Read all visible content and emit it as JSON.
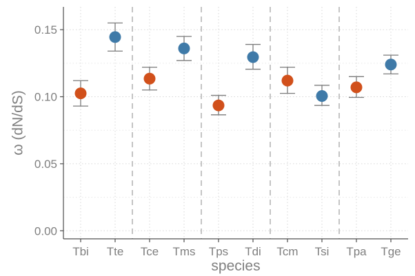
{
  "chart_data": {
    "type": "scatter",
    "categories": [
      "Tbi",
      "Tte",
      "Tce",
      "Tms",
      "Tps",
      "Tdi",
      "Tcm",
      "Tsi",
      "Tpa",
      "Tge"
    ],
    "values": [
      0.1025,
      0.1445,
      0.1135,
      0.136,
      0.0935,
      0.1295,
      0.112,
      0.1005,
      0.107,
      0.124
    ],
    "error_low": [
      0.093,
      0.134,
      0.105,
      0.127,
      0.0865,
      0.1205,
      0.1025,
      0.0935,
      0.0995,
      0.117
    ],
    "error_high": [
      0.112,
      0.155,
      0.122,
      0.145,
      0.101,
      0.139,
      0.122,
      0.1085,
      0.115,
      0.131
    ],
    "colors": [
      "#d1501b",
      "#3f7aa8",
      "#d1501b",
      "#3f7aa8",
      "#d1501b",
      "#3f7aa8",
      "#d1501b",
      "#3f7aa8",
      "#d1501b",
      "#3f7aa8"
    ],
    "xlabel": "species",
    "ylabel": "ω (dN/dS)",
    "ylim": [
      -0.006,
      0.167
    ],
    "yticks": [
      "0.00",
      "0.05",
      "0.10",
      "0.15"
    ],
    "ytick_values": [
      0,
      0.05,
      0.1,
      0.15
    ],
    "group_separators_after": [
      "Tte",
      "Tms",
      "Tdi",
      "Tsi"
    ],
    "grid": true
  }
}
